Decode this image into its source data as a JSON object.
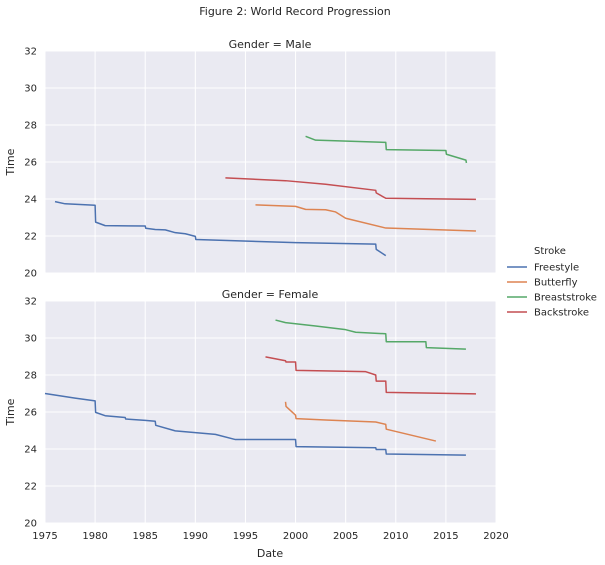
{
  "title": "Figure 2: World Record Progression",
  "legend": {
    "title": "Stroke",
    "placement": "right",
    "entries": [
      {
        "name": "Freestyle",
        "color": "#4c72b0"
      },
      {
        "name": "Butterfly",
        "color": "#dd8452"
      },
      {
        "name": "Breaststroke",
        "color": "#55a868"
      },
      {
        "name": "Backstroke",
        "color": "#c44e52"
      }
    ]
  },
  "chart_data": [
    {
      "type": "line",
      "title": "Gender = Male",
      "xlabel": "",
      "ylabel": "Time",
      "xlim": [
        1975,
        2020
      ],
      "ylim": [
        20,
        32
      ],
      "xticks": [
        "1975",
        "1980",
        "1985",
        "1990",
        "1995",
        "2000",
        "2005",
        "2010",
        "2015",
        "2020"
      ],
      "yticks": [
        "20",
        "22",
        "24",
        "26",
        "28",
        "30",
        "32"
      ],
      "grid": true,
      "series": [
        {
          "name": "Freestyle",
          "color": "#4c72b0",
          "points": [
            [
              1976.0,
              23.86
            ],
            [
              1977.0,
              23.74
            ],
            [
              1980.0,
              23.66
            ],
            [
              1980.05,
              22.75
            ],
            [
              1981.0,
              22.56
            ],
            [
              1985.0,
              22.54
            ],
            [
              1985.05,
              22.42
            ],
            [
              1986.0,
              22.35
            ],
            [
              1987.0,
              22.33
            ],
            [
              1988.0,
              22.18
            ],
            [
              1989.0,
              22.12
            ],
            [
              1990.0,
              21.98
            ],
            [
              1990.05,
              21.81
            ],
            [
              2000.0,
              21.64
            ],
            [
              2008.0,
              21.56
            ],
            [
              2008.05,
              21.28
            ],
            [
              2009.0,
              20.94
            ]
          ]
        },
        {
          "name": "Butterfly",
          "color": "#dd8452",
          "points": [
            [
              1996.0,
              23.68
            ],
            [
              2000.0,
              23.6
            ],
            [
              2001.0,
              23.44
            ],
            [
              2003.0,
              23.42
            ],
            [
              2004.0,
              23.3
            ],
            [
              2005.0,
              22.96
            ],
            [
              2009.0,
              22.43
            ],
            [
              2018.0,
              22.27
            ]
          ]
        },
        {
          "name": "Breaststroke",
          "color": "#55a868",
          "points": [
            [
              2001.0,
              27.39
            ],
            [
              2002.0,
              27.18
            ],
            [
              2009.0,
              27.06
            ],
            [
              2009.05,
              26.67
            ],
            [
              2015.0,
              26.62
            ],
            [
              2015.05,
              26.42
            ],
            [
              2017.0,
              26.1
            ],
            [
              2017.05,
              25.95
            ]
          ]
        },
        {
          "name": "Backstroke",
          "color": "#c44e52",
          "points": [
            [
              1993.0,
              25.14
            ],
            [
              1999.0,
              24.99
            ],
            [
              2003.0,
              24.8
            ],
            [
              2008.0,
              24.47
            ],
            [
              2008.05,
              24.33
            ],
            [
              2009.0,
              24.04
            ],
            [
              2018.0,
              23.98
            ]
          ]
        }
      ]
    },
    {
      "type": "line",
      "title": "Gender = Female",
      "xlabel": "Date",
      "ylabel": "Time",
      "xlim": [
        1975,
        2020
      ],
      "ylim": [
        20,
        32
      ],
      "xticks": [
        "1975",
        "1980",
        "1985",
        "1990",
        "1995",
        "2000",
        "2005",
        "2010",
        "2015",
        "2020"
      ],
      "yticks": [
        "20",
        "22",
        "24",
        "26",
        "28",
        "30",
        "32"
      ],
      "grid": true,
      "series": [
        {
          "name": "Freestyle",
          "color": "#4c72b0",
          "points": [
            [
              1975.0,
              27.0
            ],
            [
              1978.0,
              26.75
            ],
            [
              1980.0,
              26.6
            ],
            [
              1980.05,
              25.98
            ],
            [
              1981.0,
              25.8
            ],
            [
              1983.0,
              25.7
            ],
            [
              1983.05,
              25.62
            ],
            [
              1985.0,
              25.55
            ],
            [
              1986.0,
              25.5
            ],
            [
              1986.05,
              25.28
            ],
            [
              1988.0,
              24.98
            ],
            [
              1992.0,
              24.79
            ],
            [
              1994.0,
              24.51
            ],
            [
              2000.0,
              24.51
            ],
            [
              2000.05,
              24.13
            ],
            [
              2008.0,
              24.07
            ],
            [
              2008.05,
              23.97
            ],
            [
              2009.0,
              23.97
            ],
            [
              2009.05,
              23.73
            ],
            [
              2017.0,
              23.67
            ]
          ]
        },
        {
          "name": "Butterfly",
          "color": "#dd8452",
          "points": [
            [
              1999.0,
              26.55
            ],
            [
              1999.05,
              26.3
            ],
            [
              2000.0,
              25.83
            ],
            [
              2000.05,
              25.64
            ],
            [
              2003.0,
              25.57
            ],
            [
              2008.0,
              25.46
            ],
            [
              2009.0,
              25.33
            ],
            [
              2009.05,
              25.07
            ],
            [
              2014.0,
              24.43
            ]
          ]
        },
        {
          "name": "Breaststroke",
          "color": "#55a868",
          "points": [
            [
              1998.0,
              30.97
            ],
            [
              1999.0,
              30.83
            ],
            [
              2002.0,
              30.65
            ],
            [
              2005.0,
              30.45
            ],
            [
              2006.0,
              30.31
            ],
            [
              2009.0,
              30.23
            ],
            [
              2009.05,
              29.8
            ],
            [
              2013.0,
              29.8
            ],
            [
              2013.05,
              29.48
            ],
            [
              2017.0,
              29.4
            ]
          ]
        },
        {
          "name": "Backstroke",
          "color": "#c44e52",
          "points": [
            [
              1997.0,
              28.98
            ],
            [
              1999.0,
              28.77
            ],
            [
              1999.05,
              28.7
            ],
            [
              2000.0,
              28.7
            ],
            [
              2000.05,
              28.25
            ],
            [
              2007.0,
              28.18
            ],
            [
              2008.0,
              28.0
            ],
            [
              2008.05,
              27.67
            ],
            [
              2009.0,
              27.67
            ],
            [
              2009.05,
              27.06
            ],
            [
              2018.0,
              26.98
            ]
          ]
        }
      ]
    }
  ]
}
